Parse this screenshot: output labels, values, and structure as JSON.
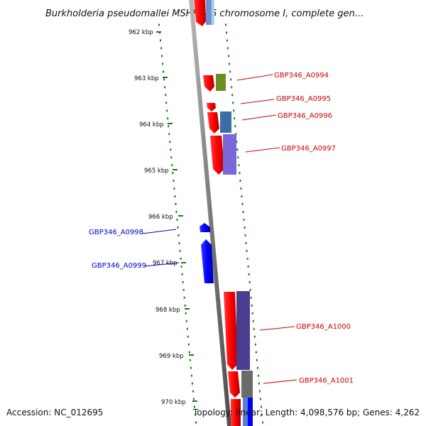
{
  "title": "Burkholderia pseudomallei MSHR346 chromosome I, complete gen...",
  "ruler": {
    "ticks": [
      "962 kbp",
      "963 kbp",
      "964 kbp",
      "965 kbp",
      "966 kbp",
      "967 kbp",
      "968 kbp",
      "969 kbp",
      "970 kbp"
    ]
  },
  "genes": [
    {
      "label": "GBP346_A0994",
      "strand": "forward",
      "color": "#d00000"
    },
    {
      "label": "GBP346_A0995",
      "strand": "forward",
      "color": "#d00000"
    },
    {
      "label": "GBP346_A0996",
      "strand": "forward",
      "color": "#d00000"
    },
    {
      "label": "GBP346_A0997",
      "strand": "forward",
      "color": "#d00000"
    },
    {
      "label": "GBP346_A0998",
      "strand": "reverse",
      "color": "#0000c0"
    },
    {
      "label": "GBP346_A0999",
      "strand": "reverse",
      "color": "#0000c0"
    },
    {
      "label": "GBP346_A1000",
      "strand": "forward",
      "color": "#d00000"
    },
    {
      "label": "GBP346_A1001",
      "strand": "forward",
      "color": "#d00000"
    }
  ],
  "footer": {
    "accession": "Accession: NC_012695",
    "summary": "Topology: linear; Length: 4,098,576 bp; Genes: 4,262"
  },
  "colors": {
    "forward_gene": "#ff0000",
    "reverse_gene": "#0000ff",
    "ruler_dots": "#1a7a1a",
    "backbone": "#888888"
  }
}
